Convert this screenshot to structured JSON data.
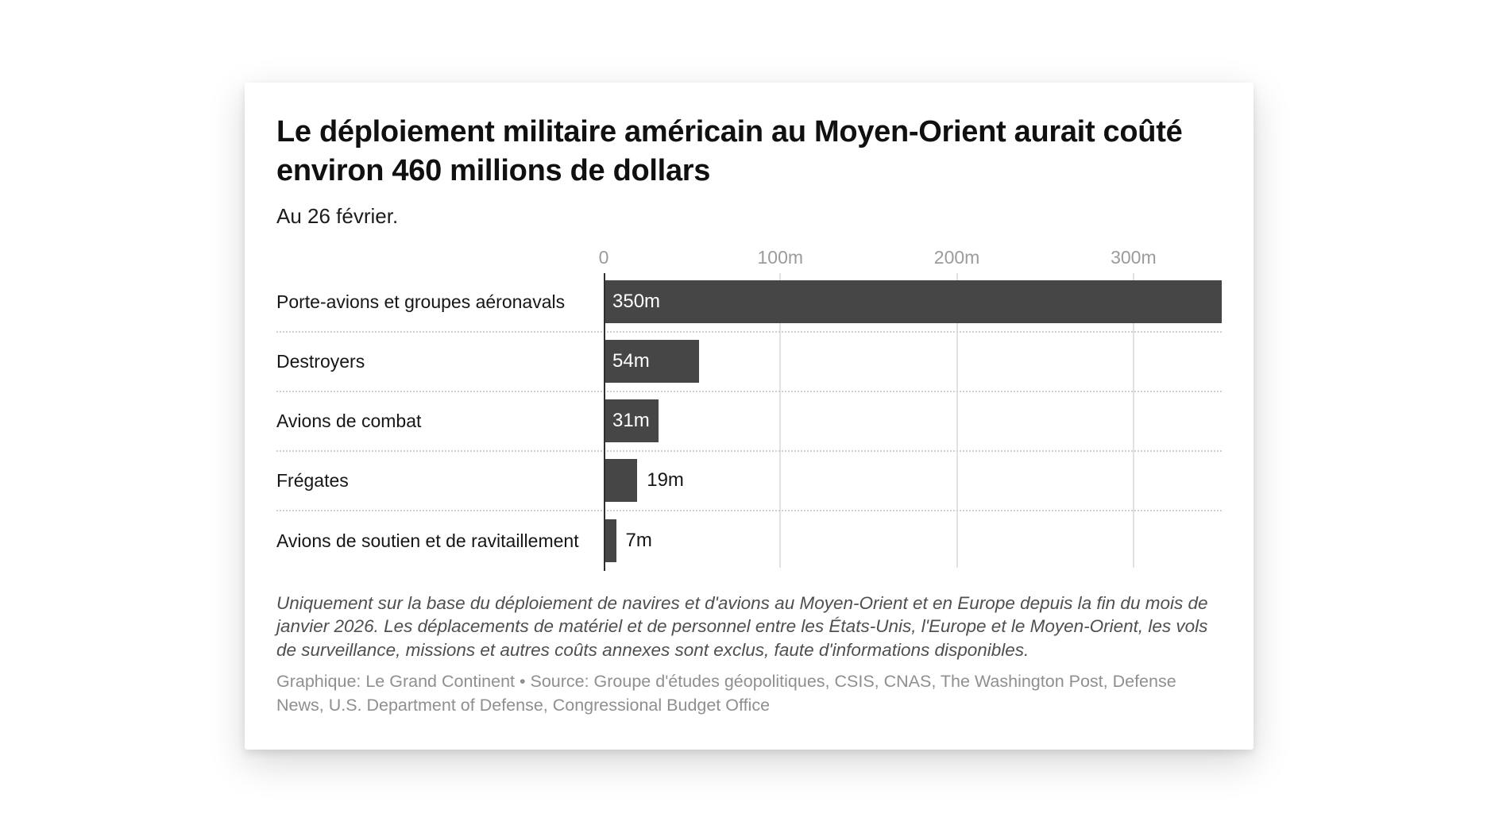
{
  "card": {
    "title": "Le déploiement militaire américain au Moyen-Orient aurait coûté environ 460 millions de dollars",
    "subtitle": "Au 26 février.",
    "footnote": "Uniquement sur la base du déploiement de navires et d'avions au Moyen-Orient et en Europe depuis la fin du mois de janvier 2026. Les déplacements de matériel et de personnel entre les États-Unis, l'Europe et le Moyen-Orient, les vols de surveillance, missions et autres coûts annexes sont exclus, faute d'informations disponibles.",
    "credit": "Graphique: Le Grand Continent • Source: Groupe d'études géopolitiques, CSIS, CNAS, The Washington Post, Defense News, U.S. Department of Defense, Congressional Budget Office"
  },
  "chart_data": {
    "type": "bar",
    "orientation": "horizontal",
    "title": "Le déploiement militaire américain au Moyen-Orient aurait coûté environ 460 millions de dollars",
    "subtitle": "Au 26 février.",
    "categories": [
      "Porte-avions et groupes aéronavals",
      "Destroyers",
      "Avions de combat",
      "Frégates",
      "Avions de soutien et de ravitaillement"
    ],
    "values": [
      350,
      54,
      31,
      19,
      7
    ],
    "value_labels": [
      "350m",
      "54m",
      "31m",
      "19m",
      "7m"
    ],
    "unit": "millions de dollars",
    "xlim": [
      0,
      350
    ],
    "x_ticks": [
      {
        "label": "0",
        "value": 0
      },
      {
        "label": "100m",
        "value": 100
      },
      {
        "label": "200m",
        "value": 200
      },
      {
        "label": "300m",
        "value": 300
      }
    ],
    "grid": "vertical-lines-behind-bars",
    "row_separator": "dotted",
    "bar_color": "#464646",
    "value_label_color_inside": "#ffffff",
    "value_label_color_outside": "#161616",
    "tick_color": "#9b9b9b",
    "legend": "none"
  }
}
